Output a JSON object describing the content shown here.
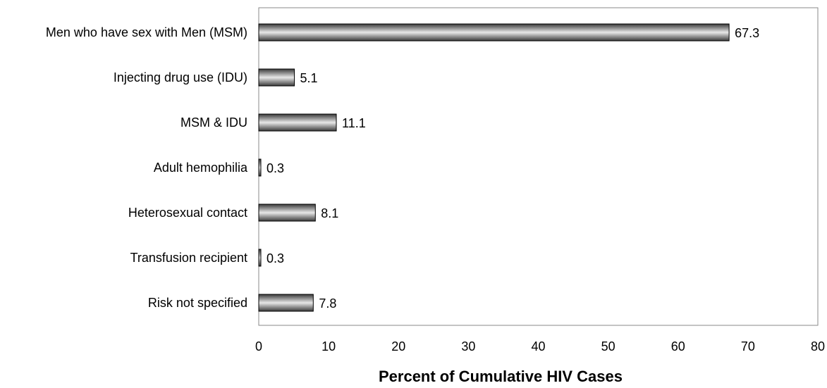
{
  "chart_data": {
    "type": "bar",
    "orientation": "horizontal",
    "categories": [
      "Men who have sex with Men (MSM)",
      "Injecting drug use (IDU)",
      "MSM & IDU",
      "Adult hemophilia",
      "Heterosexual contact",
      "Transfusion recipient",
      "Risk not specified"
    ],
    "values": [
      67.3,
      5.1,
      11.1,
      0.3,
      8.1,
      0.3,
      7.8
    ],
    "value_labels": [
      "67.3",
      "5.1",
      "11.1",
      "0.3",
      "8.1",
      "0.3",
      "7.8"
    ],
    "title": "",
    "xlabel": "Percent of Cumulative HIV Cases",
    "ylabel": "",
    "xlim": [
      0,
      80
    ],
    "xticks": [
      0,
      10,
      20,
      30,
      40,
      50,
      60,
      70,
      80
    ],
    "xtick_labels": [
      "0",
      "10",
      "20",
      "30",
      "40",
      "50",
      "60",
      "70",
      "80"
    ],
    "grid": false,
    "legend": "none",
    "colors": {
      "bar_dark": "#3a3a3a",
      "bar_light": "#e8e8e8",
      "bar_outline": "#000000",
      "plot_border": "#8a8a8a"
    }
  }
}
